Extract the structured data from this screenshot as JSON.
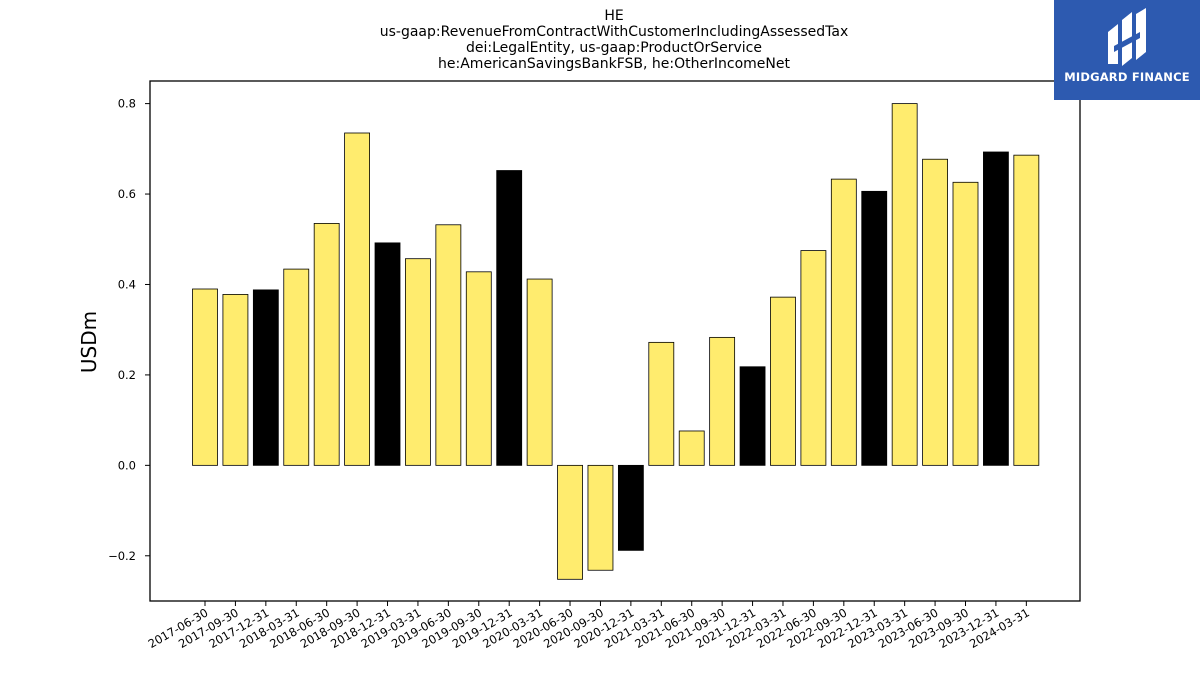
{
  "logo": {
    "text": "MIDGARD FINANCE"
  },
  "colors": {
    "normal": "#ffec6e",
    "highlight": "#000000",
    "edge": "#000000"
  },
  "chart_data": {
    "type": "bar",
    "title_lines": [
      "HE",
      "us-gaap:RevenueFromContractWithCustomerIncludingAssessedTax",
      "dei:LegalEntity, us-gaap:ProductOrService",
      "he:AmericanSavingsBankFSB, he:OtherIncomeNet"
    ],
    "ylabel": "USDm",
    "xlabel": "",
    "ylim": [
      -0.3,
      0.85
    ],
    "yticks": [
      -0.2,
      0.0,
      0.2,
      0.4,
      0.6,
      0.8
    ],
    "ytick_labels": [
      "−0.2",
      "0.0",
      "0.2",
      "0.4",
      "0.6",
      "0.8"
    ],
    "categories": [
      "2017-06-30",
      "2017-09-30",
      "2017-12-31",
      "2018-03-31",
      "2018-06-30",
      "2018-09-30",
      "2018-12-31",
      "2019-03-31",
      "2019-06-30",
      "2019-09-30",
      "2019-12-31",
      "2020-03-31",
      "2020-06-30",
      "2020-09-30",
      "2020-12-31",
      "2021-03-31",
      "2021-06-30",
      "2021-09-30",
      "2021-12-31",
      "2022-03-31",
      "2022-06-30",
      "2022-09-30",
      "2022-12-31",
      "2023-03-31",
      "2023-06-30",
      "2023-09-30",
      "2023-12-31",
      "2024-03-31"
    ],
    "values": [
      0.39,
      0.378,
      0.388,
      0.434,
      0.535,
      0.735,
      0.492,
      0.457,
      0.532,
      0.428,
      0.652,
      0.412,
      -0.252,
      -0.232,
      -0.188,
      0.272,
      0.076,
      0.283,
      0.218,
      0.372,
      0.475,
      0.633,
      0.606,
      0.8,
      0.677,
      0.626,
      0.693,
      0.686
    ],
    "highlight": [
      false,
      false,
      true,
      false,
      false,
      false,
      true,
      false,
      false,
      false,
      true,
      false,
      false,
      false,
      true,
      false,
      false,
      false,
      true,
      false,
      false,
      false,
      true,
      false,
      false,
      false,
      true,
      false
    ],
    "grid": false,
    "legend": "none"
  }
}
